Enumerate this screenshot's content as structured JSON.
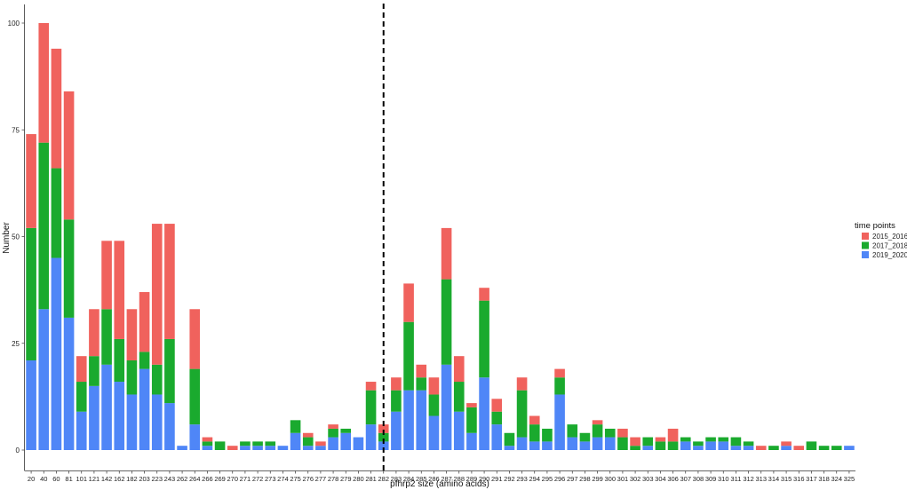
{
  "chart_data": {
    "type": "bar",
    "stacked": true,
    "xlabel": "pfhrp2 size (amino acids)",
    "ylabel": "Number",
    "ylim": [
      0,
      105
    ],
    "yticks": [
      0,
      25,
      50,
      75,
      100
    ],
    "grid": false,
    "legend_title": "time points",
    "legend_position": "right",
    "reference_line": {
      "category": "282",
      "style": "dashed"
    },
    "categories": [
      "20",
      "40",
      "60",
      "81",
      "101",
      "121",
      "142",
      "162",
      "182",
      "203",
      "223",
      "243",
      "262",
      "264",
      "266",
      "269",
      "270",
      "271",
      "272",
      "273",
      "274",
      "275",
      "276",
      "277",
      "278",
      "279",
      "280",
      "281",
      "282",
      "283",
      "284",
      "285",
      "286",
      "287",
      "288",
      "289",
      "290",
      "291",
      "292",
      "293",
      "294",
      "295",
      "296",
      "297",
      "298",
      "299",
      "300",
      "301",
      "302",
      "303",
      "304",
      "306",
      "307",
      "308",
      "309",
      "310",
      "311",
      "312",
      "313",
      "314",
      "315",
      "316",
      "317",
      "318",
      "324",
      "325"
    ],
    "series": [
      {
        "name": "2019_2020",
        "color": "#4f86f7",
        "values": [
          21,
          33,
          45,
          31,
          9,
          15,
          20,
          16,
          13,
          19,
          13,
          11,
          1,
          6,
          1,
          0,
          0,
          1,
          1,
          1,
          1,
          4,
          1,
          1,
          3,
          4,
          3,
          6,
          2,
          9,
          14,
          14,
          8,
          20,
          9,
          4,
          17,
          6,
          1,
          3,
          2,
          2,
          13,
          3,
          2,
          3,
          3,
          0,
          0,
          1,
          0,
          0,
          2,
          1,
          2,
          2,
          1,
          1,
          0,
          0,
          1,
          0,
          0,
          0,
          0,
          1
        ]
      },
      {
        "name": "2017_2018",
        "color": "#1aaa2e",
        "values": [
          31,
          39,
          21,
          23,
          7,
          7,
          13,
          10,
          8,
          4,
          7,
          15,
          0,
          13,
          1,
          2,
          0,
          1,
          1,
          1,
          0,
          3,
          2,
          0,
          2,
          1,
          0,
          8,
          2,
          5,
          16,
          3,
          5,
          20,
          7,
          6,
          18,
          3,
          3,
          11,
          4,
          3,
          4,
          3,
          2,
          3,
          2,
          3,
          1,
          2,
          2,
          2,
          1,
          1,
          1,
          1,
          2,
          1,
          0,
          1,
          0,
          0,
          2,
          1,
          1,
          0
        ]
      },
      {
        "name": "2015_2016",
        "color": "#f0625d",
        "values": [
          22,
          28,
          28,
          30,
          6,
          11,
          16,
          23,
          12,
          14,
          33,
          27,
          0,
          14,
          1,
          0,
          1,
          0,
          0,
          0,
          0,
          0,
          1,
          1,
          1,
          0,
          0,
          2,
          2,
          3,
          9,
          3,
          4,
          12,
          6,
          1,
          3,
          3,
          0,
          3,
          2,
          0,
          2,
          0,
          0,
          1,
          0,
          2,
          2,
          0,
          1,
          3,
          0,
          0,
          0,
          0,
          0,
          0,
          1,
          0,
          1,
          1,
          0,
          0,
          0,
          0
        ]
      }
    ]
  }
}
